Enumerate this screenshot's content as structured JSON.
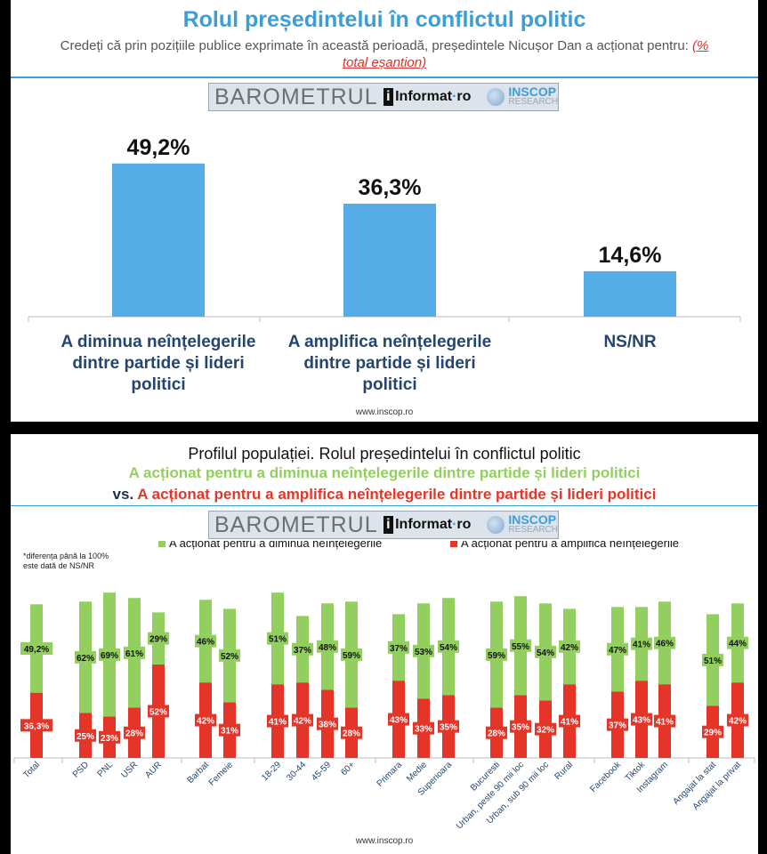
{
  "panel1": {
    "title": "Rolul președintelui în conflictul politic",
    "subtitle": "Credeți că prin pozițiile publice exprimate în această perioadă, președintele Nicușor Dan a acționat pentru:",
    "subtitle_note": "(% total eșantion)",
    "footer": "www.inscop.ro"
  },
  "logo": {
    "barometrul": "BAROMETRUL",
    "i": "i",
    "informat": "Informat",
    "ro": "ro",
    "inscop": "INSCOP",
    "research": "RESEARCH"
  },
  "panel2": {
    "title": "Profilul populației. Rolul președintelui în conflictul politic",
    "line2": "A acționat pentru a diminua neînțelegerile dintre partide și lideri politici",
    "vs": "vs.",
    "line3": "A acționat pentru a amplifica neînțelegerile dintre partide și lideri politici",
    "note": [
      "*diferența până la 100%",
      "este dată de NS/NR"
    ],
    "footer": "www.inscop.ro"
  },
  "colors": {
    "blue": "#55ace6",
    "green": "#92cf5f",
    "red": "#e53529",
    "navy": "#23456f"
  },
  "chart_data": [
    {
      "type": "bar",
      "categories": [
        [
          "A diminua neînțelegerile",
          "dintre partide și lideri",
          "politici"
        ],
        [
          "A amplifica neînțelegerile",
          "dintre partide și lideri",
          "politici"
        ],
        [
          "NS/NR"
        ]
      ],
      "values": [
        49.2,
        36.3,
        14.6
      ],
      "labels": [
        "49,2%",
        "36,3%",
        "14,6%"
      ]
    },
    {
      "type": "bar",
      "stacked": true,
      "legend_position": "top",
      "categories": [
        "Total",
        "PSD",
        "PNL",
        "USR",
        "AUR",
        "Barbat",
        "Femeie",
        "18-29",
        "30-44",
        "45-59",
        "60+",
        "Primara",
        "Medie",
        "Superioara",
        "Bucuresti",
        "Urban, peste 90 mii loc",
        "Urban, sub 90 mii loc",
        "Rural",
        "Facebook",
        "Tiktok",
        "Instagram",
        "Angajat la stat",
        "Angajat la privat"
      ],
      "groups": [
        [
          0
        ],
        [
          1,
          2,
          3,
          4
        ],
        [
          5,
          6
        ],
        [
          7,
          8,
          9,
          10
        ],
        [
          11,
          12,
          13
        ],
        [
          14,
          15,
          16,
          17
        ],
        [
          18,
          19,
          20
        ],
        [
          21,
          22
        ]
      ],
      "series": [
        {
          "name": "A acționat pentru a amplifica neînțelegerile",
          "values": [
            36.3,
            25,
            23,
            28,
            52,
            42,
            31,
            41,
            42,
            38,
            28,
            43,
            33,
            35,
            28,
            35,
            32,
            41,
            37,
            43,
            41,
            29,
            42
          ],
          "labels": [
            "36,3%",
            "25%",
            "23%",
            "28%",
            "52%",
            "42%",
            "31%",
            "41%",
            "42%",
            "38%",
            "28%",
            "43%",
            "33%",
            "35%",
            "28%",
            "35%",
            "32%",
            "41%",
            "37%",
            "43%",
            "41%",
            "29%",
            "42%"
          ]
        },
        {
          "name": "A acționat pentru a diminua neînțelegerile",
          "values": [
            49.2,
            62,
            69,
            61,
            29,
            46,
            52,
            51,
            37,
            48,
            59,
            37,
            53,
            54,
            59,
            55,
            54,
            42,
            47,
            41,
            46,
            51,
            44
          ],
          "labels": [
            "49,2%",
            "62%",
            "69%",
            "61%",
            "29%",
            "46%",
            "52%",
            "51%",
            "37%",
            "48%",
            "59%",
            "37%",
            "53%",
            "54%",
            "59%",
            "55%",
            "54%",
            "42%",
            "47%",
            "41%",
            "46%",
            "51%",
            "44%"
          ]
        }
      ]
    }
  ]
}
